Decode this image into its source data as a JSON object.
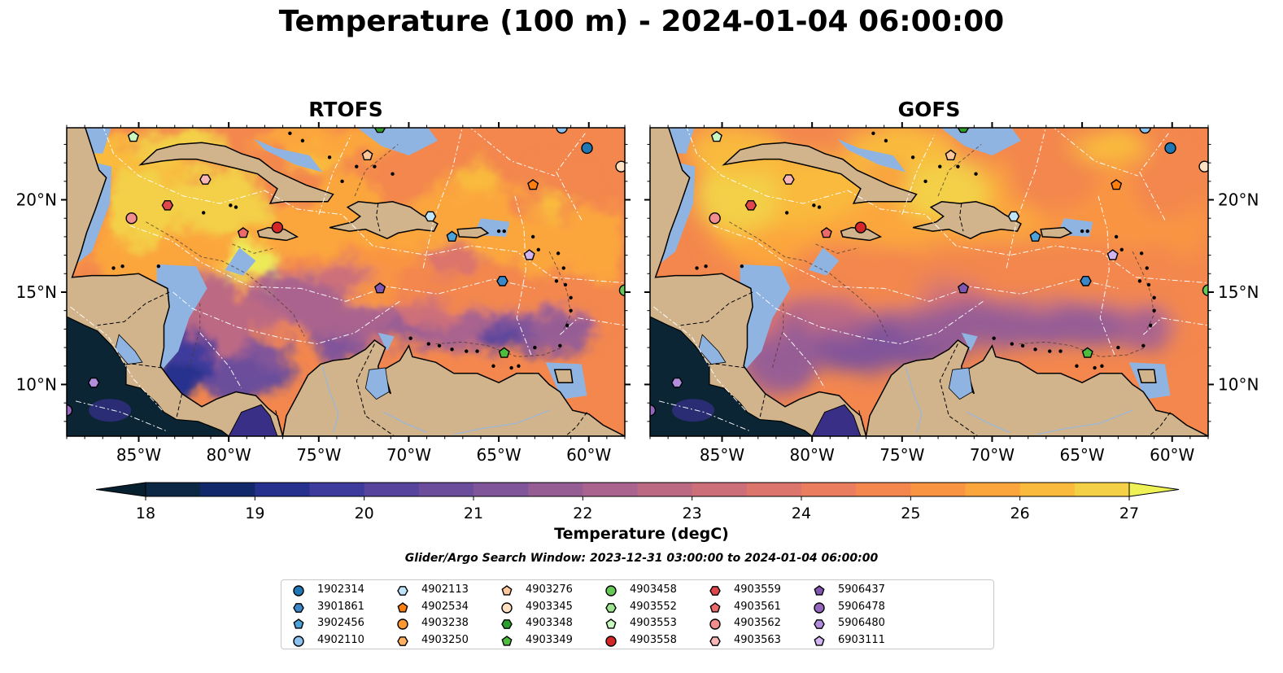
{
  "title": "Temperature (100 m) - 2024-01-04 06:00:00",
  "panels": [
    {
      "title": "RTOFS",
      "variant": "rtofs"
    },
    {
      "title": "GOFS",
      "variant": "gofs"
    }
  ],
  "axes": {
    "lon_ticks": [
      "85°W",
      "80°W",
      "75°W",
      "70°W",
      "65°W",
      "60°W"
    ],
    "lon_values": [
      -85,
      -80,
      -75,
      -70,
      -65,
      -60
    ],
    "lat_ticks": [
      "20°N",
      "15°N",
      "10°N"
    ],
    "lat_values": [
      20,
      15,
      10
    ],
    "lon_range": [
      -89,
      -58
    ],
    "lat_range": [
      7.2,
      23.9
    ]
  },
  "colorbar": {
    "label": "Temperature (degC)",
    "ticks": [
      "18",
      "19",
      "20",
      "21",
      "22",
      "23",
      "24",
      "25",
      "26",
      "27"
    ],
    "min": 18,
    "max": 27,
    "step": 0.5,
    "colors": [
      "#0c2845",
      "#11286a",
      "#25318d",
      "#3d3b9b",
      "#56449d",
      "#6b4d9b",
      "#81559a",
      "#965d95",
      "#a9638e",
      "#bc6984",
      "#cd6f79",
      "#dc756c",
      "#e97d5d",
      "#f3874e",
      "#f99542",
      "#fba63c",
      "#f9ba3d",
      "#f3d046",
      "#edea58"
    ],
    "under_color": "#072030",
    "over_color": "#eef256"
  },
  "search_window": "Glider/Argo Search Window: 2023-12-31 03:00:00 to 2024-01-04 06:00:00",
  "map_colors": {
    "land": "#d2b48c",
    "shallow": "#8fb4e2",
    "pacific": "#0b2535"
  },
  "floats": [
    {
      "id": "1902314",
      "marker": "circle",
      "color": "#1f77b4",
      "lon": -60.1,
      "lat": 22.8
    },
    {
      "id": "3901861",
      "marker": "hexagon",
      "color": "#3a88c8",
      "lon": -64.8,
      "lat": 15.6
    },
    {
      "id": "3902456",
      "marker": "pentagon",
      "color": "#4ba3d9",
      "lon": -67.6,
      "lat": 18.0
    },
    {
      "id": "4902110",
      "marker": "circle",
      "color": "#8cc2ef",
      "lon": -61.5,
      "lat": 23.9
    },
    {
      "id": "4902113",
      "marker": "hexagon",
      "color": "#bfe3f7",
      "lon": -68.8,
      "lat": 19.1
    },
    {
      "id": "4902534",
      "marker": "pentagon",
      "color": "#ff7f0e",
      "lon": -63.1,
      "lat": 20.8
    },
    {
      "id": "4903238",
      "marker": "circle",
      "color": "#ff9833",
      "lon": -89.5,
      "lat": 22.0
    },
    {
      "id": "4903250",
      "marker": "hexagon",
      "color": "#ffb060",
      "lon": -89.5,
      "lat": 20.5
    },
    {
      "id": "4903276",
      "marker": "pentagon",
      "color": "#ffc89a",
      "lon": -72.3,
      "lat": 22.4
    },
    {
      "id": "4903345",
      "marker": "circle",
      "color": "#ffe0c2",
      "lon": -58.2,
      "lat": 21.8
    },
    {
      "id": "4903348",
      "marker": "hexagon",
      "color": "#2ca02c",
      "lon": -71.6,
      "lat": 23.9
    },
    {
      "id": "4903349",
      "marker": "pentagon",
      "color": "#4cbd3c",
      "lon": -64.7,
      "lat": 11.7
    },
    {
      "id": "4903458",
      "marker": "circle",
      "color": "#66c955",
      "lon": -58.0,
      "lat": 15.1
    },
    {
      "id": "4903552",
      "marker": "hexagon",
      "color": "#9ae58d",
      "lon": -89.5,
      "lat": 17.0
    },
    {
      "id": "4903553",
      "marker": "pentagon",
      "color": "#c9f7c0",
      "lon": -85.3,
      "lat": 23.4
    },
    {
      "id": "4903558",
      "marker": "circle",
      "color": "#d62728",
      "lon": -77.3,
      "lat": 18.5
    },
    {
      "id": "4903559",
      "marker": "hexagon",
      "color": "#e0474a",
      "lon": -83.4,
      "lat": 19.7
    },
    {
      "id": "4903561",
      "marker": "pentagon",
      "color": "#ec6a6a",
      "lon": -79.2,
      "lat": 18.2
    },
    {
      "id": "4903562",
      "marker": "circle",
      "color": "#f28e8e",
      "lon": -85.4,
      "lat": 19.0
    },
    {
      "id": "4903563",
      "marker": "hexagon",
      "color": "#f8b6b6",
      "lon": -81.3,
      "lat": 21.1
    },
    {
      "id": "5906437",
      "marker": "pentagon",
      "color": "#8056b0",
      "lon": -71.6,
      "lat": 15.2
    },
    {
      "id": "5906478",
      "marker": "circle",
      "color": "#9467bd",
      "lon": -89.0,
      "lat": 8.6
    },
    {
      "id": "5906480",
      "marker": "hexagon",
      "color": "#b28ddc",
      "lon": -87.5,
      "lat": 10.1
    },
    {
      "id": "6903111",
      "marker": "pentagon",
      "color": "#d2b4f0",
      "lon": -63.3,
      "lat": 17.0
    }
  ]
}
